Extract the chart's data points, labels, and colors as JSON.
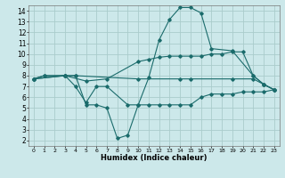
{
  "xlabel": "Humidex (Indice chaleur)",
  "bg_color": "#cce8ea",
  "grid_color": "#aacccc",
  "line_color": "#1a6b6b",
  "xlim": [
    -0.5,
    23.5
  ],
  "ylim": [
    1.5,
    14.5
  ],
  "xticks": [
    0,
    1,
    2,
    3,
    4,
    5,
    6,
    7,
    8,
    9,
    10,
    11,
    12,
    13,
    14,
    15,
    16,
    17,
    18,
    19,
    20,
    21,
    22,
    23
  ],
  "yticks": [
    2,
    3,
    4,
    5,
    6,
    7,
    8,
    9,
    10,
    11,
    12,
    13,
    14
  ],
  "line1_x": [
    0,
    1,
    3,
    4,
    10,
    14,
    15,
    19,
    21,
    22,
    23
  ],
  "line1_y": [
    7.7,
    8.0,
    8.0,
    8.0,
    7.7,
    7.7,
    7.7,
    7.7,
    7.7,
    7.2,
    6.7
  ],
  "line2_x": [
    0,
    1,
    3,
    4,
    5,
    6,
    7,
    8,
    9,
    10,
    11,
    12,
    13,
    14,
    15,
    16,
    17,
    19,
    21,
    22,
    23
  ],
  "line2_y": [
    7.7,
    8.0,
    8.0,
    8.0,
    5.3,
    5.3,
    5.0,
    2.2,
    2.5,
    5.3,
    7.8,
    11.3,
    13.2,
    14.3,
    14.3,
    13.8,
    10.5,
    10.3,
    8.0,
    7.2,
    6.7
  ],
  "line3_x": [
    0,
    3,
    4,
    5,
    6,
    7,
    9,
    10,
    11,
    12,
    13,
    14,
    15,
    16,
    17,
    18,
    19,
    20,
    21,
    22,
    23
  ],
  "line3_y": [
    7.7,
    8.0,
    7.0,
    5.5,
    7.0,
    7.0,
    5.3,
    5.3,
    5.3,
    5.3,
    5.3,
    5.3,
    5.3,
    6.0,
    6.3,
    6.3,
    6.3,
    6.5,
    6.5,
    6.5,
    6.7
  ],
  "line4_x": [
    0,
    3,
    5,
    7,
    10,
    11,
    12,
    13,
    14,
    15,
    16,
    17,
    18,
    19,
    20,
    21,
    22,
    23
  ],
  "line4_y": [
    7.7,
    8.0,
    7.5,
    7.7,
    9.3,
    9.5,
    9.7,
    9.8,
    9.8,
    9.8,
    9.8,
    10.0,
    10.0,
    10.2,
    10.2,
    8.0,
    7.2,
    6.7
  ]
}
